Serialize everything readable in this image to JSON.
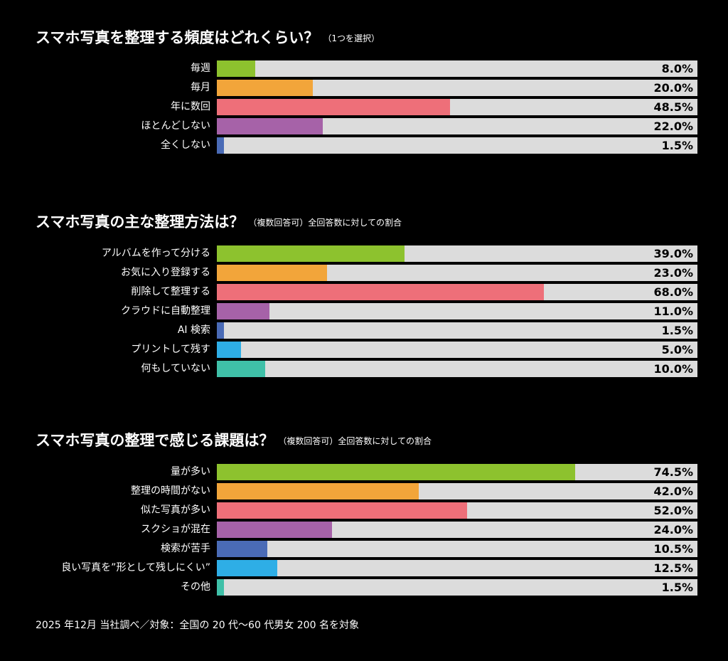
{
  "chart_data": [
    {
      "type": "bar",
      "orientation": "horizontal",
      "title": "スマホ写真を整理する頻度はどれくらい？",
      "note": "（1つを選択）",
      "xlim": [
        0,
        100
      ],
      "unit": "%",
      "categories": [
        "毎週",
        "毎月",
        "年に数回",
        "ほとんどしない",
        "全くしない"
      ],
      "values": [
        8.0,
        20.0,
        48.5,
        22.0,
        1.5
      ],
      "value_labels": [
        "8.0%",
        "20.0%",
        "48.5%",
        "22.0%",
        "1.5%"
      ],
      "colors": [
        "#8dc22e",
        "#f2a53a",
        "#ee6f79",
        "#a662a8",
        "#4a6bb6"
      ]
    },
    {
      "type": "bar",
      "orientation": "horizontal",
      "title": "スマホ写真の主な整理方法は？",
      "note": "（複数回答可）全回答数に対しての割合",
      "xlim": [
        0,
        100
      ],
      "unit": "%",
      "categories": [
        "アルバムを作って分ける",
        "お気に入り登録する",
        "削除して整理する",
        "クラウドに自動整理",
        "AI 検索",
        "プリントして残す",
        "何もしていない"
      ],
      "values": [
        39.0,
        23.0,
        68.0,
        11.0,
        1.5,
        5.0,
        10.0
      ],
      "value_labels": [
        "39.0%",
        "23.0%",
        "68.0%",
        "11.0%",
        "1.5%",
        "5.0%",
        "10.0%"
      ],
      "colors": [
        "#8dc22e",
        "#f2a53a",
        "#ee6f79",
        "#a662a8",
        "#4a6bb6",
        "#2eaee6",
        "#3fc0a8"
      ]
    },
    {
      "type": "bar",
      "orientation": "horizontal",
      "title": "スマホ写真の整理で感じる課題は？",
      "note": "（複数回答可）全回答数に対しての割合",
      "xlim": [
        0,
        100
      ],
      "unit": "%",
      "categories": [
        "量が多い",
        "整理の時間がない",
        "似た写真が多い",
        "スクショが混在",
        "検索が苦手",
        "良い写真を”形として残しにくい”",
        "その他"
      ],
      "values": [
        74.5,
        42.0,
        52.0,
        24.0,
        10.5,
        12.5,
        1.5
      ],
      "value_labels": [
        "74.5%",
        "42.0%",
        "52.0%",
        "24.0%",
        "10.5%",
        "12.5%",
        "1.5%"
      ],
      "colors": [
        "#8dc22e",
        "#f2a53a",
        "#ee6f79",
        "#a662a8",
        "#4a6bb6",
        "#2eaee6",
        "#3fc0a8"
      ]
    }
  ],
  "footnote": "2025 年12月 当社調べ／対象：全国の 20 代〜60 代男女 200 名を対象"
}
